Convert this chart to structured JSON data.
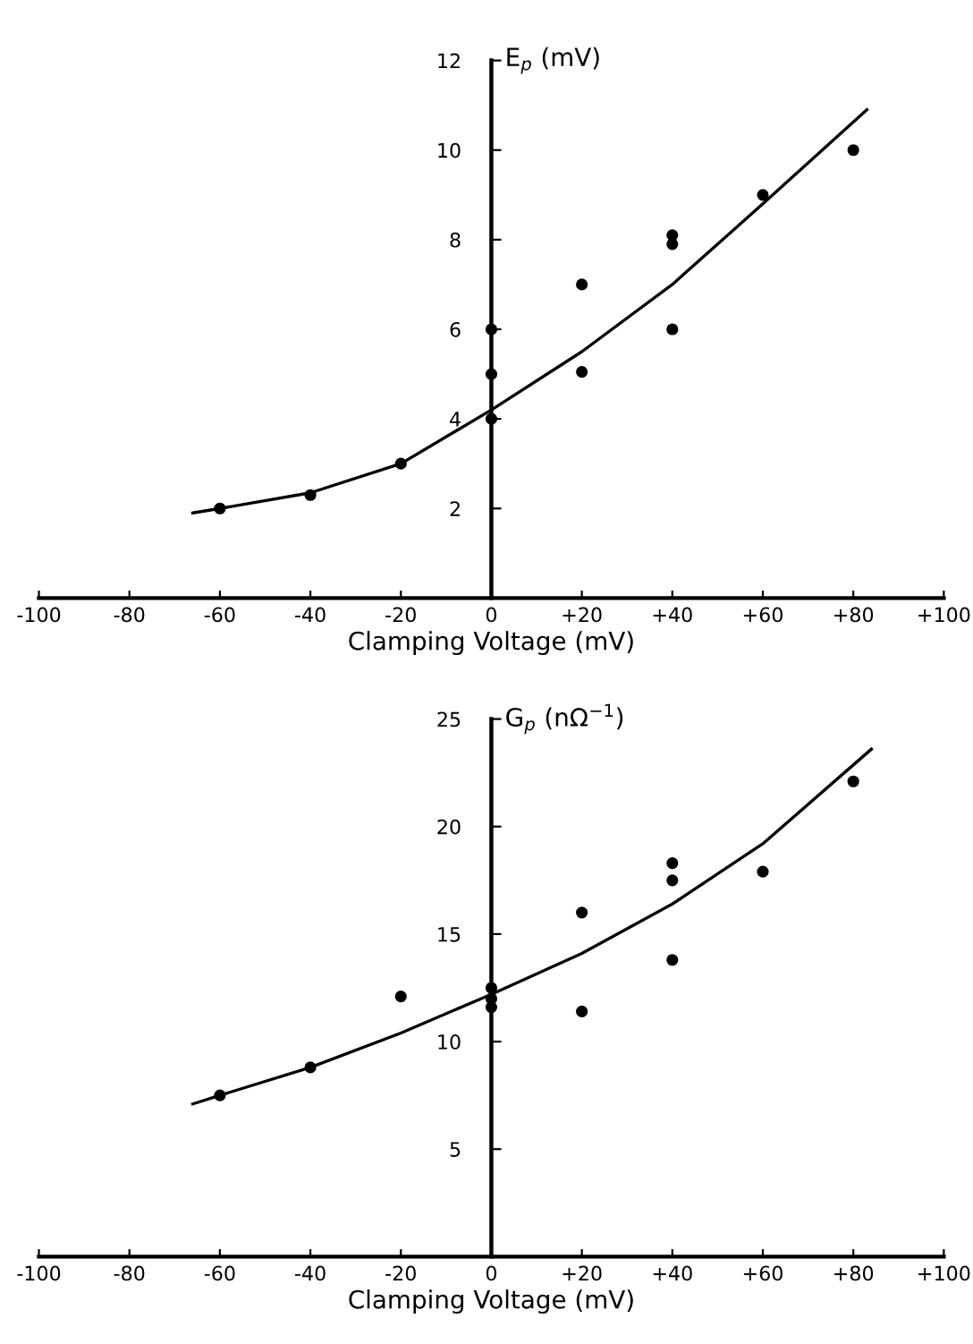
{
  "chart_data": [
    {
      "type": "scatter",
      "xlabel": "Clamping Voltage (mV)",
      "ylabel": "E$_{p}$ (mV)",
      "xlim": [
        -100,
        100
      ],
      "xticks": [
        -100,
        -80,
        -60,
        -40,
        -20,
        0,
        {
          "value": 20,
          "label": "+20"
        },
        {
          "value": 40,
          "label": "+40"
        },
        {
          "value": 60,
          "label": "+60"
        },
        {
          "value": 80,
          "label": "+80"
        },
        {
          "value": 100,
          "label": "+100"
        }
      ],
      "ylim": [
        0,
        12
      ],
      "yticks": [
        2,
        4,
        6,
        8,
        10,
        12
      ],
      "grid": false,
      "series": [
        {
          "color": "#000000",
          "marker": "circle",
          "x": [
            -60,
            -40,
            -20,
            0,
            0,
            0,
            20,
            20,
            40,
            40,
            40,
            60,
            80
          ],
          "values": [
            2,
            2.3,
            3,
            4,
            5,
            6,
            7,
            5.05,
            8.1,
            7.9,
            6,
            9,
            10
          ]
        },
        {
          "type": "line",
          "color": "#000000",
          "marker": "none",
          "line_style": "solid",
          "x": [
            -66,
            -60,
            -40,
            -20,
            0,
            20,
            40,
            60,
            83
          ],
          "values": [
            1.9,
            2.0,
            2.35,
            3.0,
            4.2,
            5.5,
            7.0,
            8.8,
            10.9
          ]
        }
      ]
    },
    {
      "type": "scatter",
      "xlabel": "Clamping Voltage (mV)",
      "ylabel": "G$_{p}$ (nΩ$^{−1}$)",
      "xlim": [
        -100,
        100
      ],
      "xticks": [
        -100,
        -80,
        -60,
        -40,
        -20,
        0,
        {
          "value": 20,
          "label": "+20"
        },
        {
          "value": 40,
          "label": "+40"
        },
        {
          "value": 60,
          "label": "+60"
        },
        {
          "value": 80,
          "label": "+80"
        },
        {
          "value": 100,
          "label": "+100"
        }
      ],
      "ylim": [
        0,
        25
      ],
      "yticks": [
        5,
        10,
        15,
        20,
        25
      ],
      "grid": false,
      "series": [
        {
          "color": "#000000",
          "marker": "circle",
          "x": [
            -60,
            -40,
            -20,
            0,
            0,
            0,
            20,
            20,
            40,
            40,
            40,
            60,
            80
          ],
          "values": [
            7.5,
            8.8,
            12.1,
            12.5,
            12,
            11.6,
            16,
            11.4,
            18.3,
            17.5,
            13.8,
            17.9,
            22.1
          ]
        },
        {
          "type": "line",
          "color": "#000000",
          "marker": "none",
          "line_style": "solid",
          "x": [
            -66,
            -60,
            -40,
            -20,
            0,
            20,
            40,
            60,
            84
          ],
          "values": [
            7.1,
            7.5,
            8.8,
            10.4,
            12.2,
            14.1,
            16.4,
            19.2,
            23.6
          ]
        }
      ]
    }
  ]
}
